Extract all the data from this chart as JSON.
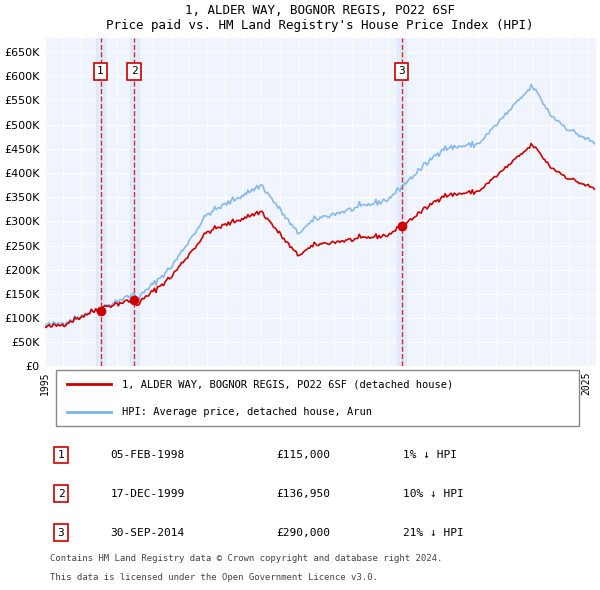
{
  "title": "1, ALDER WAY, BOGNOR REGIS, PO22 6SF",
  "subtitle": "Price paid vs. HM Land Registry's House Price Index (HPI)",
  "legend_line1": "1, ALDER WAY, BOGNOR REGIS, PO22 6SF (detached house)",
  "legend_line2": "HPI: Average price, detached house, Arun",
  "footer1": "Contains HM Land Registry data © Crown copyright and database right 2024.",
  "footer2": "This data is licensed under the Open Government Licence v3.0.",
  "transactions": [
    {
      "num": 1,
      "date": "05-FEB-1998",
      "price": 115000,
      "hpi_diff": "1% ↓ HPI",
      "year": 1998.1
    },
    {
      "num": 2,
      "date": "17-DEC-1999",
      "price": 136950,
      "hpi_diff": "10% ↓ HPI",
      "year": 1999.96
    },
    {
      "num": 3,
      "date": "30-SEP-2014",
      "price": 290000,
      "hpi_diff": "21% ↓ HPI",
      "year": 2014.75
    }
  ],
  "ylim": [
    0,
    680000
  ],
  "yticks": [
    0,
    50000,
    100000,
    150000,
    200000,
    250000,
    300000,
    350000,
    400000,
    450000,
    500000,
    550000,
    600000,
    650000
  ],
  "xlim_start": 1995.0,
  "xlim_end": 2025.5,
  "hpi_color": "#7ab4e8",
  "price_color": "#cc0000",
  "background_color": "#f0f4ff",
  "grid_color": "#ffffff",
  "transaction_shade_color": "#dce8f8",
  "dashed_line_color": "#cc0000"
}
